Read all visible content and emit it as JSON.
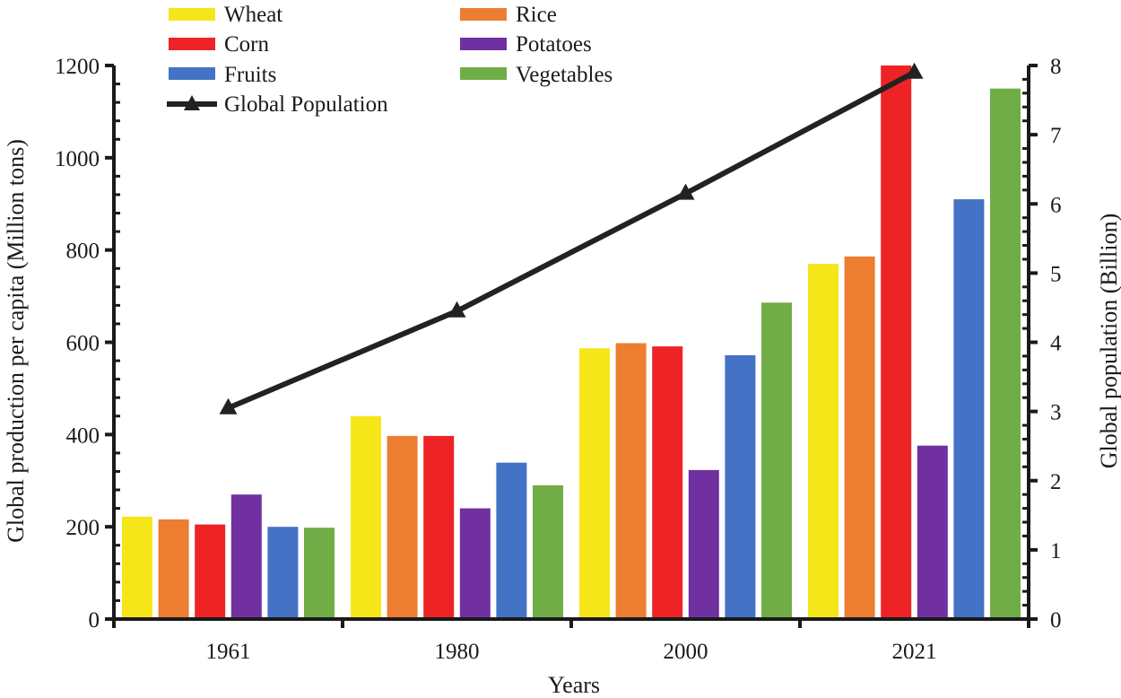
{
  "chart_data": {
    "type": "bar",
    "title": "",
    "xlabel": "Years",
    "ylabel": "Global production per capita (Million tons)",
    "y2label": "Global population (Billion)",
    "categories": [
      "1961",
      "1980",
      "2000",
      "2021"
    ],
    "ylim": [
      0,
      1200
    ],
    "y2lim": [
      0,
      8
    ],
    "yticks": [
      "0",
      "200",
      "400",
      "600",
      "800",
      "1000",
      "1200"
    ],
    "y2ticks": [
      "0",
      "1",
      "2",
      "3",
      "4",
      "5",
      "6",
      "7",
      "8"
    ],
    "grid": false,
    "legend_position": "top",
    "series": [
      {
        "name": "Wheat",
        "color": "#f5e61a",
        "values": [
          222,
          440,
          587,
          770
        ]
      },
      {
        "name": "Rice",
        "color": "#ed7d31",
        "values": [
          216,
          397,
          598,
          786
        ]
      },
      {
        "name": "Corn",
        "color": "#ee2325",
        "values": [
          205,
          397,
          591,
          1200
        ]
      },
      {
        "name": "Potatoes",
        "color": "#7030a0",
        "values": [
          270,
          240,
          323,
          376
        ]
      },
      {
        "name": "Fruits",
        "color": "#4472c4",
        "values": [
          200,
          339,
          572,
          910
        ]
      },
      {
        "name": "Vegetables",
        "color": "#70ad47",
        "values": [
          198,
          290,
          686,
          1150
        ]
      }
    ],
    "line_series": {
      "name": "Global Population",
      "color": "#222222",
      "axis": "right",
      "marker": "triangle",
      "values": [
        3.05,
        4.45,
        6.15,
        7.9
      ]
    }
  }
}
